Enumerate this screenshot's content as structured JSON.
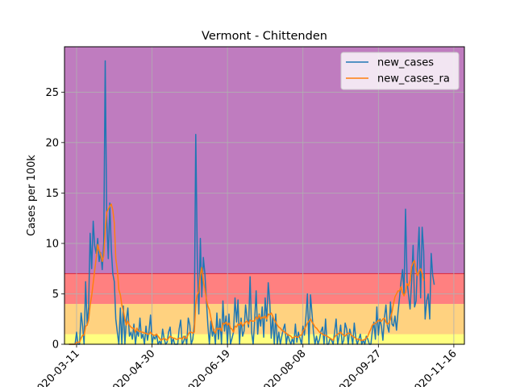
{
  "chart_data": {
    "type": "line",
    "title": "Vermont - Chittenden",
    "xlabel": "",
    "ylabel": "Cases per 100k",
    "x_ticks": [
      "2020-03-11",
      "2020-04-30",
      "2020-06-19",
      "2020-08-08",
      "2020-09-27",
      "2020-11-16"
    ],
    "x_range": [
      "2020-03-03",
      "2020-11-23"
    ],
    "x_start": "2020-03-06",
    "y_ticks": [
      0,
      5,
      10,
      15,
      20,
      25
    ],
    "ylim": [
      0,
      29.5
    ],
    "grid": true,
    "legend_position": "top-right",
    "risk_bands": [
      {
        "from": 0,
        "to": 1,
        "color": "#ffff80"
      },
      {
        "from": 1,
        "to": 4,
        "color": "#ffd280"
      },
      {
        "from": 4,
        "to": 7,
        "color": "#ff8080"
      },
      {
        "from": 7,
        "to": 29.5,
        "color": "#bf7cbf"
      }
    ],
    "series": [
      {
        "name": "new_cases",
        "color": "#1f77b4",
        "values": [
          0,
          0,
          0,
          0,
          0,
          1.2,
          0,
          0,
          3.1,
          1.8,
          0,
          6.2,
          1.9,
          3.7,
          11.0,
          7.5,
          12.2,
          9.8,
          9.0,
          10.5,
          8.2,
          9.1,
          7.4,
          10.1,
          28.1,
          12.2,
          8.5,
          14.0,
          9.5,
          7.0,
          6.2,
          2.5,
          1.2,
          0,
          3.6,
          0,
          3.8,
          0,
          2.4,
          3.6,
          0.8,
          1.2,
          0.5,
          2.0,
          0,
          1.3,
          0.8,
          2.6,
          0.6,
          1.0,
          0,
          1.8,
          0.4,
          1.3,
          2.9,
          0,
          0.8,
          0.5,
          1.0,
          0,
          0.3,
          0,
          1.5,
          0.6,
          0,
          0.2,
          1.2,
          1.7,
          0,
          0.6,
          0,
          0,
          0,
          1.5,
          2.4,
          0,
          0.3,
          0.8,
          0,
          2.6,
          1.9,
          0,
          0.5,
          2.0,
          20.8,
          8.5,
          3.0,
          10.5,
          4.7,
          8.6,
          7.0,
          4.5,
          1.9,
          0,
          2.3,
          0.8,
          1.5,
          0,
          3.1,
          0.5,
          2.5,
          0,
          4.3,
          1.3,
          2.8,
          0,
          3.0,
          0,
          0.6,
          1.2,
          4.6,
          2.2,
          4.4,
          0,
          2.6,
          0.8,
          1.3,
          3.9,
          2.5,
          1.7,
          6.7,
          1.2,
          0,
          2.3,
          5.3,
          1.0,
          3.0,
          1.8,
          3.7,
          0.7,
          4.6,
          2.3,
          6.1,
          4.2,
          0.6,
          2.8,
          0,
          3.0,
          0,
          1.2,
          0,
          0.8,
          1.5,
          2.0,
          0,
          1.0,
          0.4,
          0,
          0.6,
          0,
          2.0,
          0.2,
          1.2,
          0.6,
          0,
          1.8,
          0.9,
          2.8,
          5.0,
          0,
          4.9,
          3.0,
          1.2,
          0,
          0.8,
          0,
          0.5,
          1.3,
          1.7,
          0,
          2.5,
          0,
          0,
          0.6,
          0.4,
          0,
          1.2,
          2.5,
          0,
          0.8,
          1.9,
          0,
          0.4,
          2.1,
          1.5,
          0,
          1.5,
          0.9,
          0,
          2.1,
          0.7,
          0,
          0.5,
          1.0,
          0,
          0.4,
          0,
          0.8,
          0.5,
          0,
          0,
          1.3,
          2.2,
          0.5,
          3.7,
          0.9,
          2.5,
          1.8,
          0.4,
          2.6,
          3.9,
          1.8,
          1.2,
          4.2,
          2.0,
          1.8,
          2.8,
          1.4,
          3.1,
          4.6,
          6.2,
          7.4,
          5.0,
          13.4,
          6.2,
          4.9,
          3.5,
          6.2,
          9.8,
          3.7,
          4.3,
          8.6,
          11.6,
          4.6,
          11.6,
          9.2,
          2.5,
          4.3,
          5.0,
          2.5,
          9.0,
          6.8,
          5.9
        ]
      },
      {
        "name": "new_cases_ra",
        "color": "#ff7f0e",
        "values": [
          0,
          0,
          0,
          0,
          0,
          0.2,
          0.2,
          0.2,
          0.6,
          0.9,
          0.9,
          1.8,
          1.9,
          2.4,
          3.9,
          4.8,
          6.1,
          7.3,
          8.5,
          9.9,
          9.3,
          8.9,
          8.2,
          8.8,
          11.3,
          13.1,
          13.4,
          13.7,
          13.9,
          13.3,
          12.0,
          8.5,
          7.4,
          5.4,
          4.9,
          3.9,
          3.3,
          2.5,
          1.9,
          2.3,
          1.9,
          1.7,
          1.6,
          1.6,
          1.2,
          1.6,
          1.3,
          1.3,
          1.2,
          1.2,
          1.1,
          1.1,
          1.0,
          1.0,
          1.2,
          1.0,
          0.9,
          0.9,
          1.0,
          0.8,
          0.6,
          0.4,
          0.5,
          0.6,
          0.5,
          0.4,
          0.6,
          0.8,
          0.7,
          0.6,
          0.6,
          0.5,
          0.5,
          0.6,
          0.6,
          0.5,
          0.8,
          0.6,
          0.6,
          1.0,
          1.2,
          1.2,
          1.1,
          1.2,
          4.1,
          4.9,
          5.2,
          6.9,
          7.6,
          6.2,
          5.5,
          4.5,
          3.8,
          3.4,
          2.6,
          1.9,
          1.3,
          1.1,
          1.6,
          1.5,
          1.6,
          1.3,
          2.1,
          2.0,
          2.2,
          1.9,
          2.1,
          1.6,
          1.5,
          1.2,
          1.8,
          1.7,
          2.0,
          1.9,
          2.2,
          1.8,
          2.0,
          2.2,
          2.3,
          2.0,
          2.4,
          2.3,
          2.3,
          2.3,
          2.7,
          2.5,
          2.9,
          2.5,
          2.7,
          2.6,
          2.8,
          2.5,
          3.0,
          2.9,
          3.1,
          2.8,
          2.4,
          2.2,
          1.9,
          1.7,
          1.6,
          1.4,
          1.3,
          1.2,
          1.1,
          0.9,
          0.9,
          0.8,
          0.6,
          0.7,
          0.8,
          0.7,
          0.7,
          0.9,
          0.9,
          1.3,
          1.5,
          1.8,
          2.1,
          2.3,
          2.5,
          2.2,
          2.0,
          1.7,
          1.6,
          1.4,
          1.2,
          1.1,
          1.0,
          0.9,
          0.9,
          0.8,
          0.7,
          0.6,
          0.5,
          0.4,
          0.7,
          0.9,
          1.0,
          1.1,
          1.2,
          1.0,
          0.9,
          0.8,
          1.0,
          1.1,
          1.1,
          0.9,
          0.8,
          0.7,
          0.6,
          0.5,
          0.5,
          0.4,
          0.4,
          0.4,
          0.5,
          0.6,
          0.8,
          1.2,
          1.5,
          1.9,
          2.0,
          2.1,
          2.2,
          2.4,
          2.3,
          2.3,
          2.5,
          2.6,
          2.2,
          2.0,
          2.1,
          2.5,
          3.2,
          4.0,
          4.7,
          5.0,
          5.3,
          5.3,
          5.7,
          5.1,
          4.8,
          5.2,
          6.0,
          5.8,
          6.3,
          7.7,
          8.1,
          8.3,
          7.3,
          6.8,
          7.2,
          7.5,
          7.0,
          6.3
        ]
      }
    ]
  }
}
